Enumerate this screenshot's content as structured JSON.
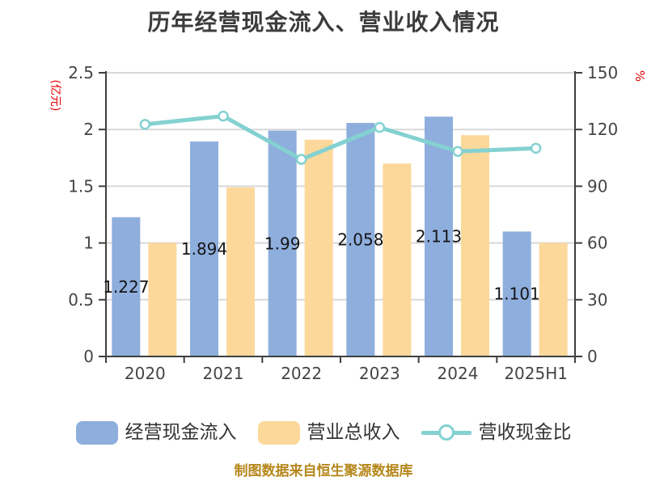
{
  "title": "历年经营现金流入、营业收入情况",
  "footer": "制图数据来自恒生聚源数据库",
  "colors": {
    "bar_cash": "#8eaedd",
    "bar_revenue": "#fcd89a",
    "ratio_line": "#84d1d1",
    "marker_fill": "#ffffff",
    "grid_line": "#d8d8d8",
    "axis_line": "#3f3f3f",
    "tick_text": "#454545",
    "value_label_text": "#151515",
    "unit_text": "#e60000",
    "title_text": "#3c3c3c",
    "footer_text": "#b5871b",
    "legend_text": "#333333"
  },
  "chart_data": {
    "type": "bar",
    "subtype": "grouped bars with overlay line",
    "categories": [
      "2020",
      "2021",
      "2022",
      "2023",
      "2024",
      "2025H1"
    ],
    "series": [
      {
        "name": "经营现金流入",
        "type": "bar",
        "axis": "left",
        "values": [
          1.227,
          1.894,
          1.99,
          2.058,
          2.113,
          1.101
        ],
        "value_labels": [
          "1.227",
          "1.894",
          "1.99",
          "2.058",
          "2.113",
          "1.101"
        ],
        "labels_visible": true
      },
      {
        "name": "营业总收入",
        "type": "bar",
        "axis": "left",
        "values": [
          1.0,
          1.49,
          1.91,
          1.7,
          1.95,
          1.0
        ],
        "labels_visible": false
      },
      {
        "name": "营收现金比",
        "type": "line",
        "axis": "right",
        "values": [
          122.7,
          127.1,
          104.2,
          121.1,
          108.4,
          110.1
        ],
        "labels_visible": false
      }
    ],
    "left_axis": {
      "unit": "(亿元)",
      "min": 0,
      "max": 2.5,
      "ticks": [
        0,
        0.5,
        1,
        1.5,
        2,
        2.5
      ]
    },
    "right_axis": {
      "unit": "%",
      "min": 0,
      "max": 150,
      "ticks": [
        0,
        30,
        60,
        90,
        120,
        150
      ]
    },
    "grid": true,
    "legend_position": "bottom"
  }
}
